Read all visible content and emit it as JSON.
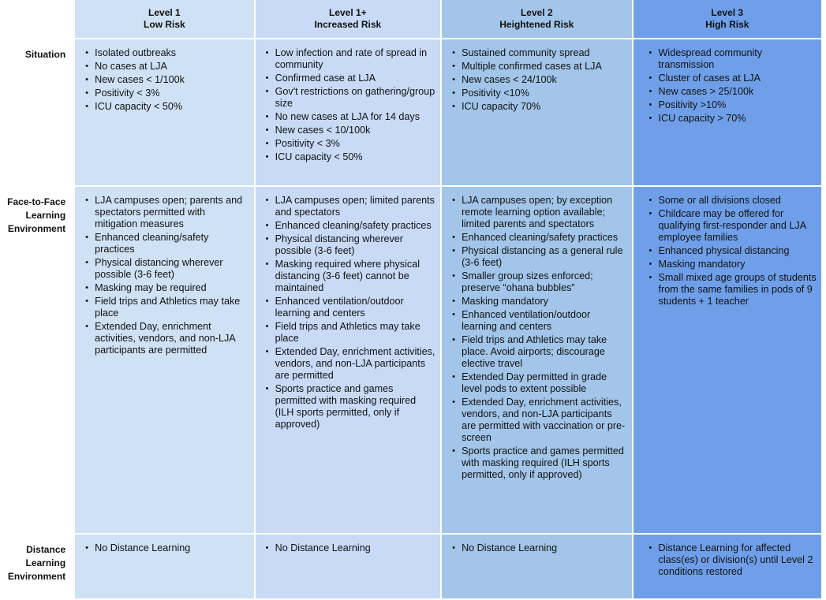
{
  "colors": {
    "level1": "#cfe1f4",
    "level1plus": "#c8daf6",
    "level2": "#a2c5e9",
    "level3": "#6f9fe9"
  },
  "levels": [
    {
      "name": "Level 1",
      "risk": "Low Risk"
    },
    {
      "name": "Level 1+",
      "risk": "Increased Risk"
    },
    {
      "name": "Level 2",
      "risk": "Heightened Risk"
    },
    {
      "name": "Level 3",
      "risk": "High Risk"
    }
  ],
  "rows": [
    {
      "label": "Situation",
      "cells": [
        [
          "Isolated outbreaks",
          "No cases at LJA",
          "New cases < 1/100k",
          "Positivity < 3%",
          "ICU capacity < 50%"
        ],
        [
          "Low infection and rate of spread in community",
          "Confirmed case at LJA",
          "Gov't restrictions on gathering/group size",
          "No new cases at LJA for 14 days",
          "New cases < 10/100k",
          "Positivity < 3%",
          "ICU capacity < 50%"
        ],
        [
          "Sustained community spread",
          "Multiple confirmed cases at LJA",
          "New cases < 24/100k",
          "Positivity <10%",
          "ICU capacity 70%"
        ],
        [
          "Widespread community transmission",
          "Cluster of cases at LJA",
          "New cases > 25/100k",
          "Positivity >10%",
          "ICU capacity > 70%"
        ]
      ]
    },
    {
      "label": "Face-to-Face Learning Environment",
      "cells": [
        [
          "LJA campuses open; parents and spectators permitted with mitigation measures",
          "Enhanced cleaning/safety practices",
          "Physical distancing wherever possible (3-6 feet)",
          "Masking may be required",
          "Field trips and Athletics may take place",
          "Extended Day, enrichment activities, vendors, and non-LJA participants are permitted"
        ],
        [
          "LJA campuses open; limited parents and spectators",
          "Enhanced cleaning/safety practices",
          "Physical distancing wherever possible (3-6 feet)",
          "Masking required where physical distancing (3-6 feet) cannot be maintained",
          "Enhanced ventilation/outdoor learning and centers",
          "Field trips and Athletics may take place",
          "Extended Day, enrichment activities, vendors, and non-LJA participants are permitted",
          "Sports practice and games permitted with masking required (ILH sports permitted, only if approved)"
        ],
        [
          "LJA campuses open; by exception remote learning option available; limited parents and spectators",
          "Enhanced cleaning/safety practices",
          "Physical distancing as a general rule (3-6 feet)",
          "Smaller group sizes enforced; preserve “ohana bubbles”",
          "Masking mandatory",
          "Enhanced ventilation/outdoor learning and centers",
          "Field trips and Athletics may take place. Avoid airports; discourage elective travel",
          "Extended Day permitted in grade level pods to extent possible",
          "Extended Day, enrichment activities, vendors, and non-LJA participants are permitted with vaccination or pre-screen",
          "Sports practice and games permitted with masking required (ILH sports permitted, only if approved)"
        ],
        [
          "Some or all divisions closed",
          "Childcare may be offered for qualifying first-responder and LJA employee families",
          "Enhanced physical distancing",
          "Masking mandatory",
          "Small mixed age groups of students from the same families in pods of 9 students + 1 teacher"
        ]
      ]
    },
    {
      "label": "Distance Learning Environment",
      "cells": [
        [
          "No Distance Learning"
        ],
        [
          "No Distance Learning"
        ],
        [
          "No Distance Learning"
        ],
        [
          "Distance Learning for affected class(es) or division(s) until Level 2 conditions restored"
        ]
      ]
    }
  ]
}
